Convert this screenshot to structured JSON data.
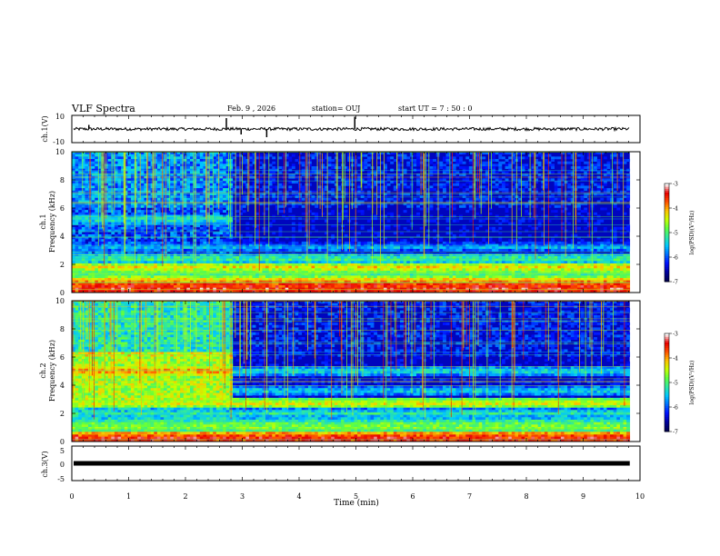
{
  "header": {
    "title": "VLF Spectra",
    "date": "Feb. 9 , 2026",
    "station": "station= OUJ",
    "start": "start  UT =   7 : 50 : 0"
  },
  "chart_data": [
    {
      "type": "line",
      "name": "waveform-ch1",
      "ylabel": "ch.1(V)",
      "ylim": [
        -10,
        10
      ],
      "yticks": [
        "10",
        "-10"
      ],
      "xlim": [
        0,
        10
      ],
      "baseline_v": 0
    },
    {
      "type": "heatmap",
      "name": "spectrogram-ch1",
      "ylabel": "ch.1\nFrequency (kHz)",
      "ylabel_top": "ch.1",
      "ylabel_main": "Frequency (kHz)",
      "xlim": [
        0,
        10
      ],
      "data_end_min": 9.82,
      "ylim": [
        0,
        10
      ],
      "yticks": [
        "0",
        "2",
        "4",
        "6",
        "8",
        "10"
      ],
      "colorbar": {
        "label": "log(PSD)(V²/Hz)",
        "range": [
          -7,
          -3
        ],
        "ticks": [
          "-3",
          "-4",
          "-5",
          "-6",
          "-7"
        ]
      },
      "regime_change_min": 2.85,
      "bands_khz": [
        {
          "f": 0.3,
          "level": -3.3
        },
        {
          "f": 0.6,
          "level": -3.6
        },
        {
          "f": 1.0,
          "level": -4.5
        },
        {
          "f": 1.5,
          "level": -4.8
        },
        {
          "f": 1.8,
          "level": -4.2
        },
        {
          "f": 2.4,
          "level": -5.0
        },
        {
          "f": 3.2,
          "level": -5.6
        },
        {
          "f": 4.1,
          "level": -6.9
        },
        {
          "f": 5.2,
          "level": -5.2
        }
      ]
    },
    {
      "type": "heatmap",
      "name": "spectrogram-ch2",
      "ylabel": "ch.2\nFrequency (kHz)",
      "ylabel_top": "ch.2",
      "ylabel_main": "Frequency (kHz)",
      "xlim": [
        0,
        10
      ],
      "data_end_min": 9.82,
      "ylim": [
        0,
        10
      ],
      "yticks": [
        "0",
        "2",
        "4",
        "6",
        "8",
        "10"
      ],
      "colorbar": {
        "label": "log(PSD)(V²/Hz)",
        "range": [
          -7,
          -3
        ],
        "ticks": [
          "-3",
          "-4",
          "-5",
          "-6",
          "-7"
        ]
      },
      "regime_change_min": 2.85,
      "bands_khz": [
        {
          "f": 0.3,
          "level": -3.4
        },
        {
          "f": 1.0,
          "level": -4.6
        },
        {
          "f": 1.3,
          "level": -4.9
        },
        {
          "f": 2.0,
          "level": -5.2
        },
        {
          "f": 2.7,
          "level": -4.3
        },
        {
          "f": 3.6,
          "level": -5.4
        },
        {
          "f": 4.3,
          "level": -6.2
        },
        {
          "f": 5.0,
          "level": -3.9
        }
      ]
    },
    {
      "type": "line",
      "name": "waveform-ch3",
      "ylabel": "ch.3(V)",
      "ylim": [
        -5,
        5
      ],
      "yticks": [
        "5",
        "0",
        "-5"
      ],
      "xlim": [
        0,
        10
      ],
      "baseline_v": 0,
      "xlabel": "Time (min)",
      "xticks": [
        "0",
        "1",
        "2",
        "3",
        "4",
        "5",
        "6",
        "7",
        "8",
        "9",
        "10"
      ]
    }
  ],
  "colors": {
    "axis": "#000000",
    "background": "#ffffff",
    "colormap": [
      "#000050",
      "#0000a0",
      "#0010ff",
      "#0070ff",
      "#00c8ff",
      "#30e8a0",
      "#60ff40",
      "#c8ff00",
      "#ffc000",
      "#ff5000",
      "#e80000",
      "#ffffff"
    ]
  }
}
